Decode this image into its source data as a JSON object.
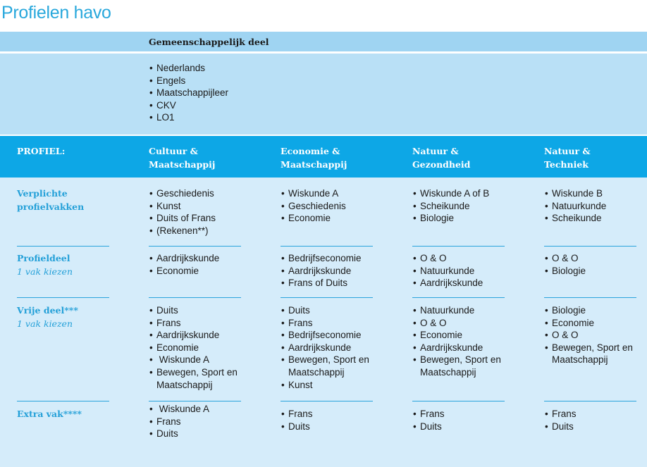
{
  "title": "Profielen havo",
  "common": {
    "title": "Gemeenschappelijk deel",
    "items": [
      "Nederlands",
      "Engels",
      "Maatschappijleer",
      "CKV",
      "LO1"
    ]
  },
  "profile_label": "PROFIEL:",
  "profiles": [
    {
      "line1": "Cultuur &",
      "line2": "Maatschappij"
    },
    {
      "line1": "Economie &",
      "line2": "Maatschappij"
    },
    {
      "line1": "Natuur &",
      "line2": "Gezondheid"
    },
    {
      "line1": "Natuur &",
      "line2": "Techniek"
    }
  ],
  "rows": [
    {
      "label1": "Verplichte",
      "label2": "profielvakken",
      "sub": "",
      "cells": [
        [
          "Geschiedenis",
          "Kunst",
          "Duits of Frans",
          "(Rekenen**)"
        ],
        [
          "Wiskunde A",
          "Geschiedenis",
          "Economie"
        ],
        [
          "Wiskunde A of B",
          "Scheikunde",
          "Biologie"
        ],
        [
          "Wiskunde B",
          "Natuurkunde",
          "Scheikunde"
        ]
      ]
    },
    {
      "label1": "Profieldeel",
      "label2": "",
      "sub": "1 vak kiezen",
      "cells": [
        [
          "Aardrijkskunde",
          "Economie"
        ],
        [
          "Bedrijfseconomie",
          "Aardrijkskunde",
          "Frans of Duits"
        ],
        [
          "O & O",
          "Natuurkunde",
          "Aardrijkskunde"
        ],
        [
          "O & O",
          "Biologie"
        ]
      ]
    },
    {
      "label1": "Vrije deel***",
      "label2": "",
      "sub": "1 vak kiezen",
      "cells": [
        [
          "Duits",
          "Frans",
          "Aardrijkskunde",
          "Economie",
          " Wiskunde A",
          "Bewegen, Sport en Maatschappij"
        ],
        [
          "Duits",
          "Frans",
          "Bedrijfseconomie",
          "Aardrijkskunde",
          "Bewegen, Sport en Maatschappij",
          "Kunst"
        ],
        [
          "Natuurkunde",
          "O & O",
          "Economie",
          "Aardrijkskunde",
          "Bewegen, Sport en Maatschappij"
        ],
        [
          "Biologie",
          "Economie",
          "O & O",
          "Bewegen, Sport en Maatschappij"
        ]
      ]
    },
    {
      "label1": "Extra vak****",
      "label2": "",
      "sub": "",
      "cells": [
        [
          " Wiskunde A",
          "Frans",
          "Duits"
        ],
        [
          "Frans",
          "Duits"
        ],
        [
          "Frans",
          "Duits"
        ],
        [
          "Frans",
          "Duits"
        ]
      ]
    }
  ]
}
